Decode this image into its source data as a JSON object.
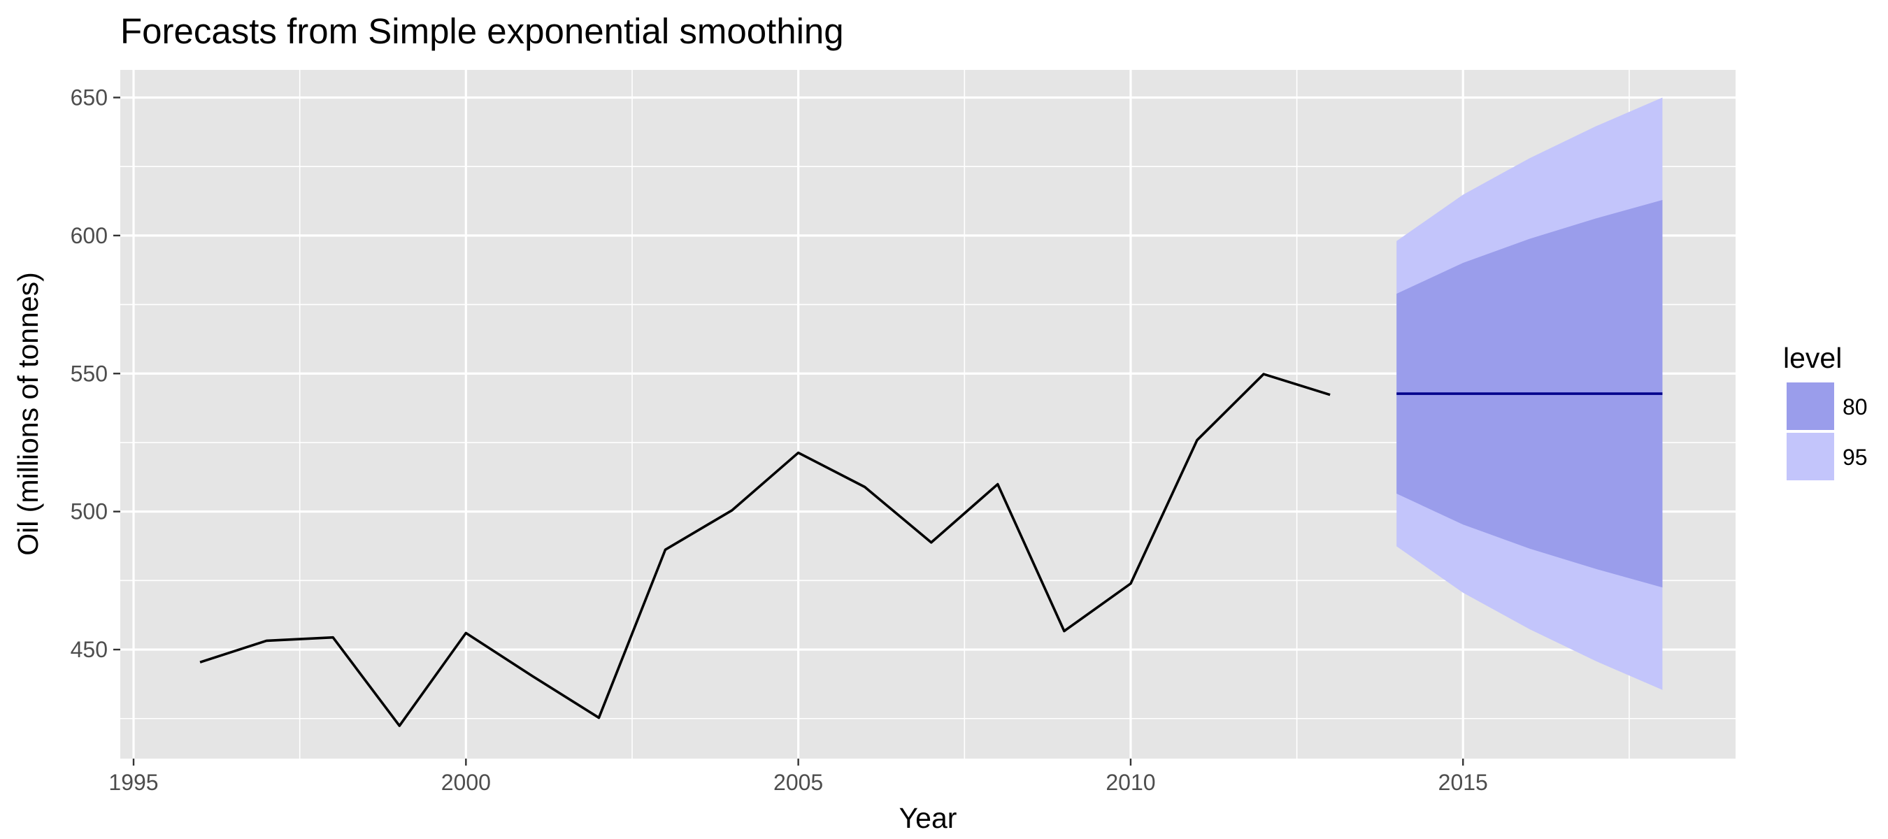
{
  "chart_data": {
    "type": "line",
    "title": "Forecasts from Simple exponential smoothing",
    "xlabel": "Year",
    "ylabel": "Oil (millions of tonnes)",
    "xlim": [
      1994.8,
      2019.1
    ],
    "ylim": [
      410.5,
      660
    ],
    "x_ticks": [
      1995,
      2000,
      2005,
      2010,
      2015
    ],
    "x_tick_labels": [
      "1995",
      "2000",
      "2005",
      "2010",
      "2015"
    ],
    "y_ticks": [
      450,
      500,
      550,
      600,
      650
    ],
    "y_tick_labels": [
      "450",
      "500",
      "550",
      "600",
      "650"
    ],
    "grid": true,
    "legend": {
      "title": "level",
      "position": "right",
      "entries": [
        {
          "label": "80",
          "color": "#9a9deb"
        },
        {
          "label": "95",
          "color": "#c3c5fb"
        }
      ]
    },
    "series": [
      {
        "x": [
          1996,
          1997,
          1998,
          1999,
          2000,
          2001,
          2002,
          2003,
          2004,
          2005,
          2006,
          2007,
          2008,
          2009,
          2010,
          2011,
          2012,
          2013
        ],
        "values": [
          445.4,
          453.2,
          454.4,
          422.4,
          456.0,
          440.4,
          425.3,
          486.2,
          500.4,
          521.3,
          508.9,
          488.8,
          509.9,
          456.7,
          473.9,
          525.9,
          549.8,
          542.3
        ],
        "color": "#000000"
      },
      {
        "x": [
          2014,
          2015,
          2016,
          2017,
          2018
        ],
        "values": [
          542.7,
          542.7,
          542.7,
          542.7,
          542.7
        ],
        "color": "#00008b"
      }
    ],
    "intervals": [
      {
        "level": "95",
        "x": [
          2014,
          2015,
          2016,
          2017,
          2018
        ],
        "lower": [
          487.4,
          470.6,
          457.4,
          445.8,
          435.4
        ],
        "upper": [
          598.0,
          614.8,
          628.0,
          639.6,
          650.0
        ],
        "color": "#c3c5fb"
      },
      {
        "level": "80",
        "x": [
          2014,
          2015,
          2016,
          2017,
          2018
        ],
        "lower": [
          506.5,
          495.3,
          486.6,
          479.2,
          472.5
        ],
        "upper": [
          578.9,
          590.1,
          598.8,
          606.2,
          612.9
        ],
        "color": "#9a9deb"
      }
    ],
    "colors": {
      "panel_background": "#e5e5e5",
      "grid": "#ffffff"
    }
  }
}
